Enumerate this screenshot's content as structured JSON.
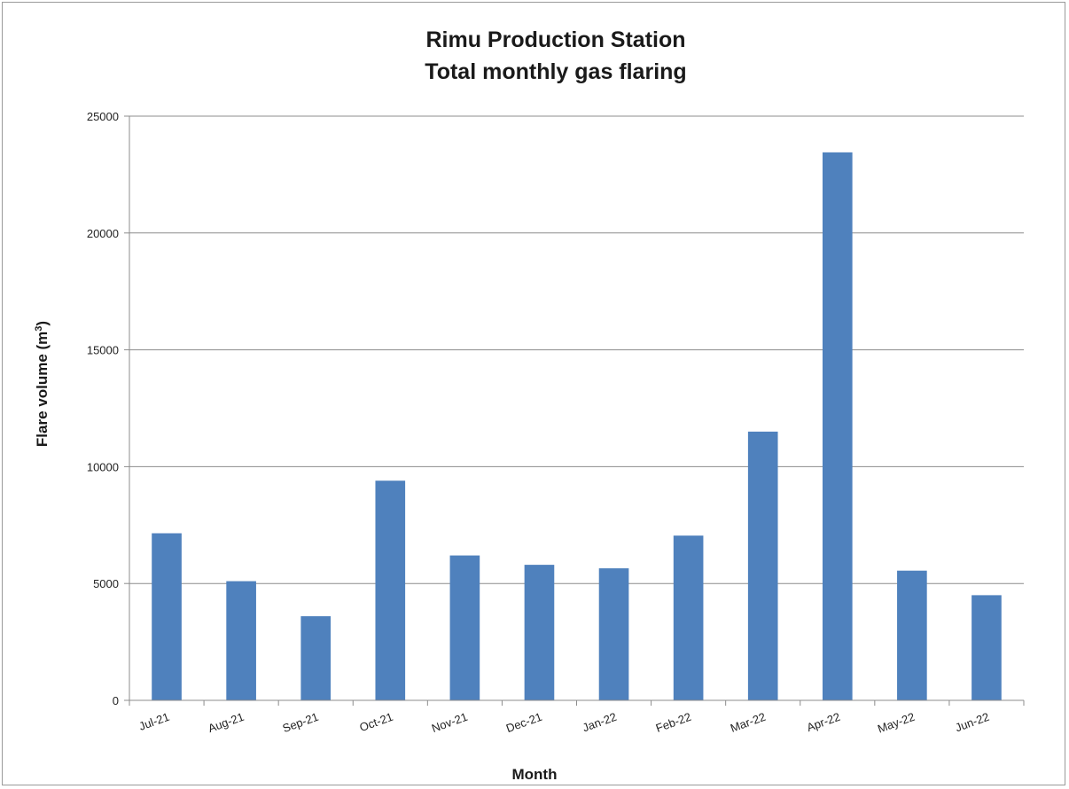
{
  "chart_data": {
    "type": "bar",
    "title_lines": [
      "Rimu Production Station",
      "Total monthly gas flaring"
    ],
    "xlabel": "Month",
    "ylabel_main": "Flare volume (m",
    "ylabel_sup": "3",
    "ylabel_end": ")",
    "categories": [
      "Jul-21",
      "Aug-21",
      "Sep-21",
      "Oct-21",
      "Nov-21",
      "Dec-21",
      "Jan-22",
      "Feb-22",
      "Mar-22",
      "Apr-22",
      "May-22",
      "Jun-22"
    ],
    "values": [
      7150,
      5100,
      3600,
      9400,
      6200,
      5800,
      5650,
      7050,
      11500,
      23450,
      5550,
      4500
    ],
    "ylim": [
      0,
      25000
    ],
    "yticks": [
      0,
      5000,
      10000,
      15000,
      20000,
      25000
    ],
    "grid": true,
    "bar_color": "#4f81bd",
    "legend": "none"
  }
}
